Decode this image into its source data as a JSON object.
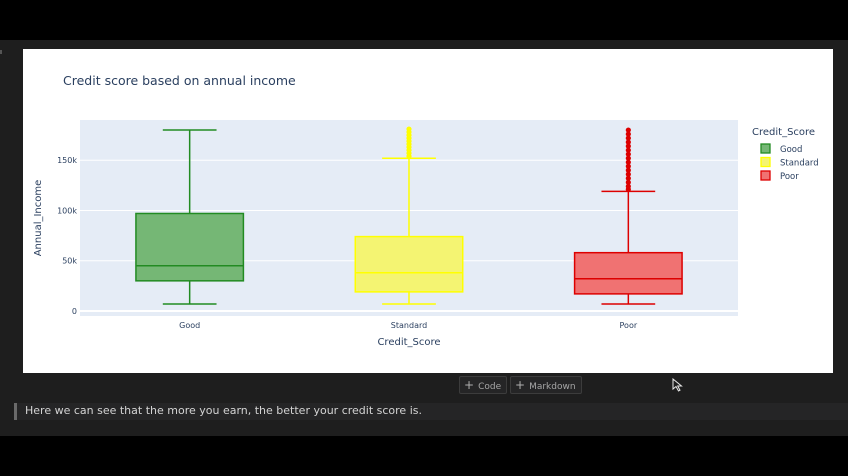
{
  "notebook": {
    "add_code_label": "Code",
    "add_markdown_label": "Markdown",
    "markdown_text": "Here we can see that the more you earn, the better your credit score is."
  },
  "colors": {
    "plot_bg": "#e5ecf6",
    "paper_bg": "#ffffff",
    "text": "#2a3f5f",
    "grid": "#ffffff"
  },
  "chart_data": {
    "type": "box",
    "title": "Credit score based on annual income",
    "xlabel": "Credit_Score",
    "ylabel": "Annual_Income",
    "categories": [
      "Good",
      "Standard",
      "Poor"
    ],
    "ylim": [
      -5000,
      190000
    ],
    "yticks": [
      0,
      50000,
      100000,
      150000
    ],
    "ytick_labels": [
      "0",
      "50k",
      "100k",
      "150k"
    ],
    "legend_title": "Credit_Score",
    "legend_position": "right",
    "series": [
      {
        "name": "Good",
        "color": "#228b22",
        "fill": "#75b775",
        "min": 7000,
        "q1": 30000,
        "median": 45000,
        "q3": 97000,
        "max": 180000,
        "outliers": []
      },
      {
        "name": "Standard",
        "color": "#ffff00",
        "fill": "#f4f472",
        "min": 7000,
        "q1": 19000,
        "median": 38000,
        "q3": 74000,
        "max": 152000,
        "outliers": [
          154000,
          157000,
          160000,
          163000,
          166000,
          169000,
          172000,
          175000,
          178000,
          181000
        ]
      },
      {
        "name": "Poor",
        "color": "#dd0000",
        "fill": "#f07272",
        "min": 7000,
        "q1": 17000,
        "median": 32000,
        "q3": 58000,
        "max": 119000,
        "outliers": [
          121000,
          124000,
          128000,
          132000,
          136000,
          140000,
          144000,
          148000,
          152000,
          156000,
          160000,
          164000,
          168000,
          172000,
          176000,
          180000
        ]
      }
    ]
  }
}
